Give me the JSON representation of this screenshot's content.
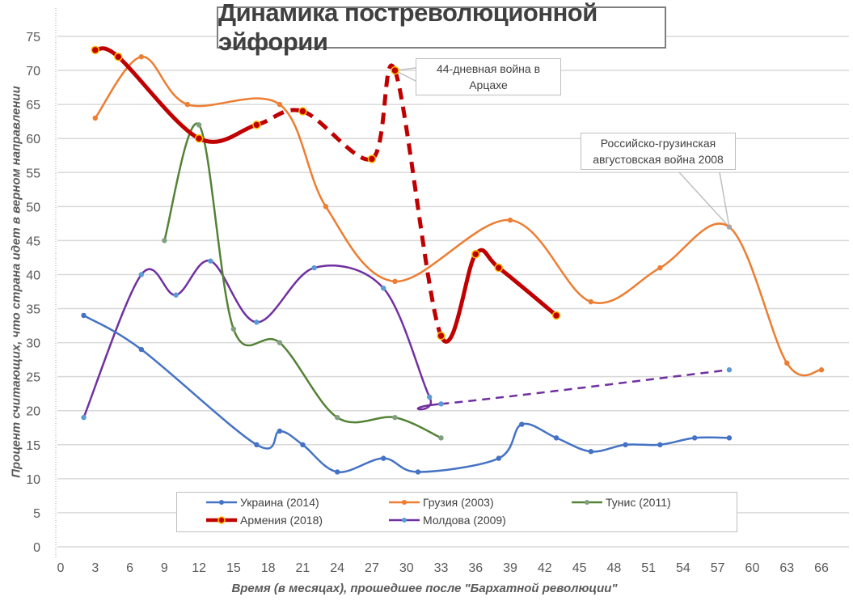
{
  "chart_data": {
    "type": "line",
    "title": "Динамика постреволюционной эйфории",
    "xlabel": "Время (в месяцах), прошедшее после \"Бархатной революции\"",
    "ylabel": "Процент считающих, что страна идет в верном направлении",
    "xlim": [
      0,
      66
    ],
    "ylim": [
      0,
      75
    ],
    "xticks": [
      0,
      3,
      6,
      9,
      12,
      15,
      18,
      21,
      24,
      27,
      30,
      33,
      36,
      39,
      42,
      45,
      48,
      51,
      54,
      57,
      60,
      63,
      66
    ],
    "yticks": [
      0,
      5,
      10,
      15,
      20,
      25,
      30,
      35,
      40,
      45,
      50,
      55,
      60,
      65,
      70,
      75
    ],
    "grid": "horizontal",
    "legend_position": "bottom",
    "series": [
      {
        "name": "Украина (2014)",
        "color": "#4472c4",
        "x": [
          2,
          7,
          17,
          19,
          21,
          24,
          28,
          31,
          38,
          40,
          43,
          46,
          49,
          52,
          55,
          58
        ],
        "y": [
          34,
          29,
          15,
          17,
          15,
          11,
          13,
          11,
          13,
          18,
          16,
          14,
          15,
          15,
          16,
          16
        ]
      },
      {
        "name": "Грузия (2003)",
        "color": "#ed7d31",
        "x": [
          3,
          7,
          11,
          19,
          23,
          29,
          39,
          46,
          52,
          58,
          63,
          66
        ],
        "y": [
          63,
          72,
          65,
          65,
          50,
          39,
          48,
          36,
          41,
          47,
          27,
          26
        ]
      },
      {
        "name": "Тунис (2011)",
        "color": "#548235",
        "x": [
          9,
          12,
          15,
          19,
          24,
          29,
          33
        ],
        "y": [
          45,
          62,
          32,
          30,
          19,
          19,
          16
        ]
      },
      {
        "name": "Армения (2018)",
        "color": "#c00000",
        "x": [
          3,
          5,
          12,
          17,
          21,
          27,
          29,
          33,
          36,
          38,
          43
        ],
        "y": [
          73,
          72,
          60,
          62,
          64,
          57,
          70,
          31,
          43,
          41,
          34
        ],
        "dashed_between": [
          17,
          33
        ]
      },
      {
        "name": "Молдова (2009)",
        "color": "#7030a0",
        "x": [
          2,
          7,
          10,
          13,
          17,
          22,
          28,
          32,
          33,
          58
        ],
        "y": [
          19,
          40,
          37,
          42,
          33,
          41,
          38,
          22,
          21,
          26
        ],
        "dashed_between": [
          33,
          58
        ]
      }
    ],
    "annotations": [
      {
        "text": "44-дневная война в Арцахе",
        "x": 29,
        "y": 70
      },
      {
        "text": "Российско-грузинская августовская война 2008",
        "x": 58,
        "y": 47
      }
    ]
  }
}
